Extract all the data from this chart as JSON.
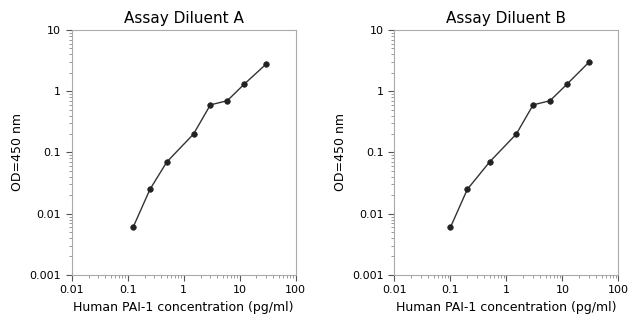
{
  "panel_A": {
    "title": "Assay Diluent A",
    "x": [
      0.125,
      0.25,
      0.5,
      1.5,
      3,
      6,
      12,
      30
    ],
    "y": [
      0.006,
      0.025,
      0.07,
      0.2,
      0.6,
      0.7,
      1.3,
      2.8
    ],
    "xlim": [
      0.01,
      100
    ],
    "ylim": [
      0.001,
      10
    ],
    "xlabel": "Human PAI-1 concentration (pg/ml)",
    "ylabel": "OD=450 nm"
  },
  "panel_B": {
    "title": "Assay Diluent B",
    "x": [
      0.1,
      0.2,
      0.5,
      1.5,
      3,
      6,
      12,
      30
    ],
    "y": [
      0.006,
      0.025,
      0.07,
      0.2,
      0.6,
      0.7,
      1.3,
      3.0
    ],
    "xlim": [
      0.01,
      100
    ],
    "ylim": [
      0.001,
      10
    ],
    "xlabel": "Human PAI-1 concentration (pg/ml)",
    "ylabel": "OD=450 nm"
  },
  "line_color": "#333333",
  "marker_color": "#222222",
  "bg_color": "#ffffff",
  "title_fontsize": 11,
  "label_fontsize": 9,
  "tick_fontsize": 8
}
